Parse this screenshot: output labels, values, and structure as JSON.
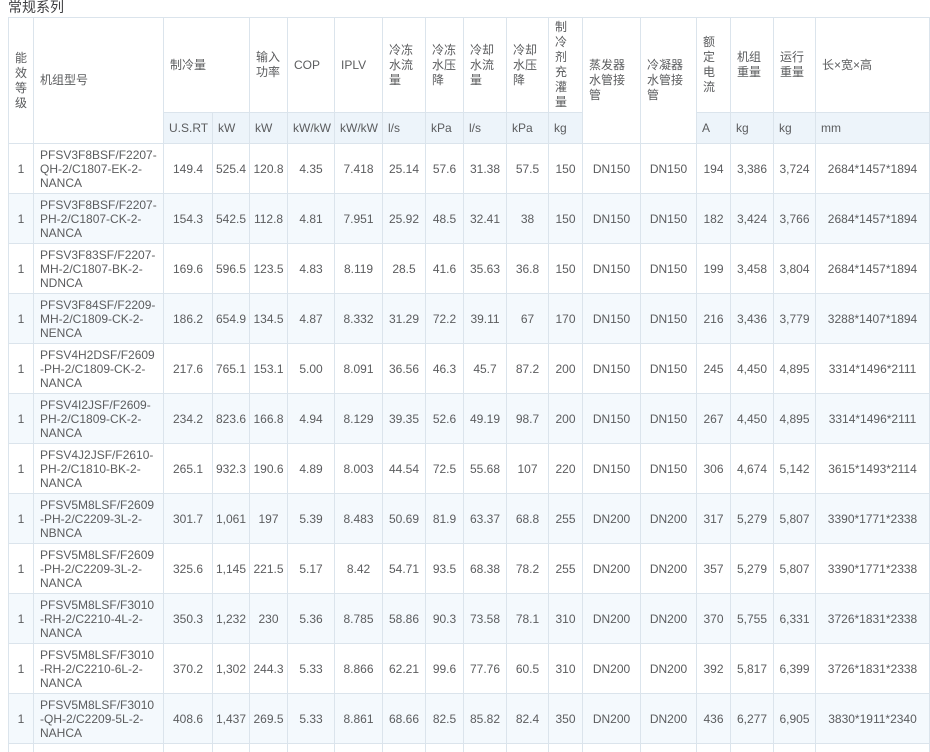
{
  "page": {
    "title": "常规系列"
  },
  "table": {
    "headers": {
      "energy_level": "能效等级",
      "model": "机组型号",
      "cooling_capacity": "制冷量",
      "input_power": "输入功率",
      "cop": "COP",
      "iplv": "IPLV",
      "chilled_water_flow": "冷冻水流量",
      "chilled_water_drop": "冷冻水压降",
      "cooling_water_flow": "冷却水流量",
      "cooling_water_drop": "冷却水压降",
      "refrigerant_charge": "制冷剂充灌量",
      "evaporator_pipe": "蒸发器水管接管",
      "condenser_pipe": "冷凝器水管接管",
      "rated_current": "额定电流",
      "unit_weight": "机组重量",
      "running_weight": "运行重量",
      "dimensions": "长×宽×高"
    },
    "units": {
      "cooling_usrt": "U.S.RT",
      "cooling_kw": "kW",
      "input_power": "kW",
      "cop": "kW/kW",
      "iplv": "kW/kW",
      "chilled_water_flow": "l/s",
      "chilled_water_drop": "kPa",
      "cooling_water_flow": "l/s",
      "cooling_water_drop": "kPa",
      "refrigerant_charge": "kg",
      "rated_current": "A",
      "unit_weight": "kg",
      "running_weight": "kg",
      "dimensions": "mm"
    },
    "rows": [
      [
        "1",
        "PFSV3F8BSF/F2207-QH-2/C1807-EK-2-NANCA",
        "149.4",
        "525.4",
        "120.8",
        "4.35",
        "7.418",
        "25.14",
        "57.6",
        "31.38",
        "57.5",
        "150",
        "DN150",
        "DN150",
        "194",
        "3,386",
        "3,724",
        "2684*1457*1894"
      ],
      [
        "1",
        "PFSV3F8BSF/F2207-PH-2/C1807-CK-2-NANCA",
        "154.3",
        "542.5",
        "112.8",
        "4.81",
        "7.951",
        "25.92",
        "48.5",
        "32.41",
        "38",
        "150",
        "DN150",
        "DN150",
        "182",
        "3,424",
        "3,766",
        "2684*1457*1894"
      ],
      [
        "1",
        "PFSV3F83SF/F2207-MH-2/C1807-BK-2-NDNCA",
        "169.6",
        "596.5",
        "123.5",
        "4.83",
        "8.119",
        "28.5",
        "41.6",
        "35.63",
        "36.8",
        "150",
        "DN150",
        "DN150",
        "199",
        "3,458",
        "3,804",
        "2684*1457*1894"
      ],
      [
        "1",
        "PFSV3F84SF/F2209-MH-2/C1809-CK-2-NENCA",
        "186.2",
        "654.9",
        "134.5",
        "4.87",
        "8.332",
        "31.29",
        "72.2",
        "39.11",
        "67",
        "170",
        "DN150",
        "DN150",
        "216",
        "3,436",
        "3,779",
        "3288*1407*1894"
      ],
      [
        "1",
        "PFSV4H2DSF/F2609-PH-2/C1809-CK-2-NANCA",
        "217.6",
        "765.1",
        "153.1",
        "5.00",
        "8.091",
        "36.56",
        "46.3",
        "45.7",
        "87.2",
        "200",
        "DN150",
        "DN150",
        "245",
        "4,450",
        "4,895",
        "3314*1496*2111"
      ],
      [
        "1",
        "PFSV4I2JSF/F2609-PH-2/C1809-CK-2-NANCA",
        "234.2",
        "823.6",
        "166.8",
        "4.94",
        "8.129",
        "39.35",
        "52.6",
        "49.19",
        "98.7",
        "200",
        "DN150",
        "DN150",
        "267",
        "4,450",
        "4,895",
        "3314*1496*2111"
      ],
      [
        "1",
        "PFSV4J2JSF/F2610-PH-2/C1810-BK-2-NANCA",
        "265.1",
        "932.3",
        "190.6",
        "4.89",
        "8.003",
        "44.54",
        "72.5",
        "55.68",
        "107",
        "220",
        "DN150",
        "DN150",
        "306",
        "4,674",
        "5,142",
        "3615*1493*2114"
      ],
      [
        "1",
        "PFSV5M8LSF/F2609-PH-2/C2209-3L-2-NBNCA",
        "301.7",
        "1,061",
        "197",
        "5.39",
        "8.483",
        "50.69",
        "81.9",
        "63.37",
        "68.8",
        "255",
        "DN200",
        "DN200",
        "317",
        "5,279",
        "5,807",
        "3390*1771*2338"
      ],
      [
        "1",
        "PFSV5M8LSF/F2609-PH-2/C2209-3L-2-NANCA",
        "325.6",
        "1,145",
        "221.5",
        "5.17",
        "8.42",
        "54.71",
        "93.5",
        "68.38",
        "78.2",
        "255",
        "DN200",
        "DN200",
        "357",
        "5,279",
        "5,807",
        "3390*1771*2338"
      ],
      [
        "1",
        "PFSV5M8LSF/F3010-RH-2/C2210-4L-2-NANCA",
        "350.3",
        "1,232",
        "230",
        "5.36",
        "8.785",
        "58.86",
        "90.3",
        "73.58",
        "78.1",
        "310",
        "DN200",
        "DN200",
        "370",
        "5,755",
        "6,331",
        "3726*1831*2338"
      ],
      [
        "1",
        "PFSV5M8LSF/F3010-RH-2/C2210-6L-2-NANCA",
        "370.2",
        "1,302",
        "244.3",
        "5.33",
        "8.866",
        "62.21",
        "99.6",
        "77.76",
        "60.5",
        "310",
        "DN200",
        "DN200",
        "392",
        "5,817",
        "6,399",
        "3726*1831*2338"
      ],
      [
        "1",
        "PFSV5M8LSF/F3010-QH-2/C2209-5L-2-NAHCA",
        "408.6",
        "1,437",
        "269.5",
        "5.33",
        "8.861",
        "68.66",
        "82.5",
        "85.82",
        "82.4",
        "350",
        "DN200",
        "DN200",
        "436",
        "6,277",
        "6,905",
        "3830*1911*2340"
      ]
    ]
  }
}
